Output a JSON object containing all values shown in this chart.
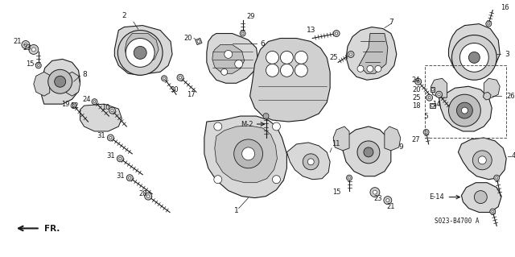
{
  "background_color": "#ffffff",
  "diagram_number": "S023-B4700 A",
  "fig_width": 6.4,
  "fig_height": 3.19,
  "line_color": "#1a1a1a",
  "fill_light": "#e8e8e8",
  "fill_dark": "#b0b0b0",
  "fill_white": "#ffffff"
}
